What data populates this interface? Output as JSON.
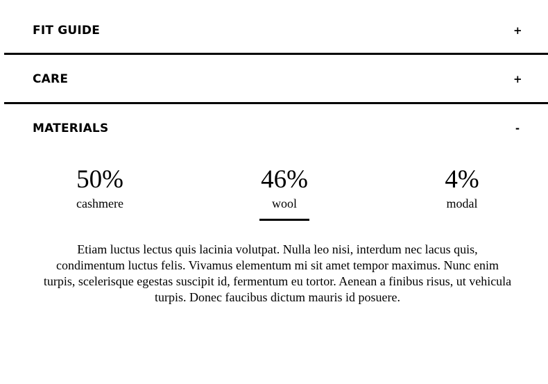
{
  "accordion": {
    "sections": [
      {
        "title": "FIT GUIDE",
        "toggle": "+",
        "expanded": false
      },
      {
        "title": "CARE",
        "toggle": "+",
        "expanded": false
      },
      {
        "title": "MATERIALS",
        "toggle": "-",
        "expanded": true
      }
    ]
  },
  "materials": {
    "stats": [
      {
        "percent": "50%",
        "label": "cashmere",
        "active": false
      },
      {
        "percent": "46%",
        "label": "wool",
        "active": true
      },
      {
        "percent": "4%",
        "label": "modal",
        "active": false
      }
    ],
    "description": "Etiam luctus lectus quis lacinia volutpat. Nulla leo nisi, interdum nec lacus quis, condimentum luctus felis. Vivamus elementum mi sit amet tempor maximus. Nunc enim turpis, scelerisque egestas suscipit id, fermentum eu tortor. Aenean a finibus risus, ut vehicula turpis. Donec faucibus dictum mauris id posuere."
  }
}
